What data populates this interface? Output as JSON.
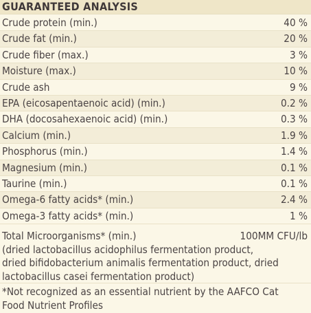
{
  "header": {
    "title": "GUARANTEED ANALYSIS"
  },
  "rows": [
    {
      "name": "Crude protein (min.)",
      "value": "40 %"
    },
    {
      "name": "Crude fat (min.)",
      "value": "20 %"
    },
    {
      "name": "Crude fiber (max.)",
      "value": "3 %"
    },
    {
      "name": "Moisture (max.)",
      "value": "10 %"
    },
    {
      "name": "Crude ash",
      "value": "9 %"
    },
    {
      "name": "EPA (eicosapentaenoic acid) (min.)",
      "value": "0.2 %"
    },
    {
      "name": "DHA (docosahexaenoic acid) (min.)",
      "value": "0.3 %"
    },
    {
      "name": "Calcium (min.)",
      "value": "1.9 %"
    },
    {
      "name": "Phosphorus (min.)",
      "value": "1.4 %"
    },
    {
      "name": "Magnesium (min.)",
      "value": "0.1 %"
    },
    {
      "name": "Taurine (min.)",
      "value": "0.1 %"
    },
    {
      "name": "Omega-6 fatty acids* (min.)",
      "value": "2.4 %"
    },
    {
      "name": "Omega-3 fatty acids* (min.)",
      "value": "1 %"
    }
  ],
  "microorganisms": {
    "name": "Total Microorganisms* (min.)",
    "value": "100MM CFU/lb",
    "lines": [
      "(dried lactobacillus acidophilus fermentation product,",
      "dried bifidobacterium animalis fermentation product, dried",
      "lactobacillus casei fermentation product)"
    ]
  },
  "footnote": {
    "lines": [
      "*Not recognized as an essential nutrient by the AAFCO Cat",
      "Food Nutrient Profiles"
    ]
  }
}
